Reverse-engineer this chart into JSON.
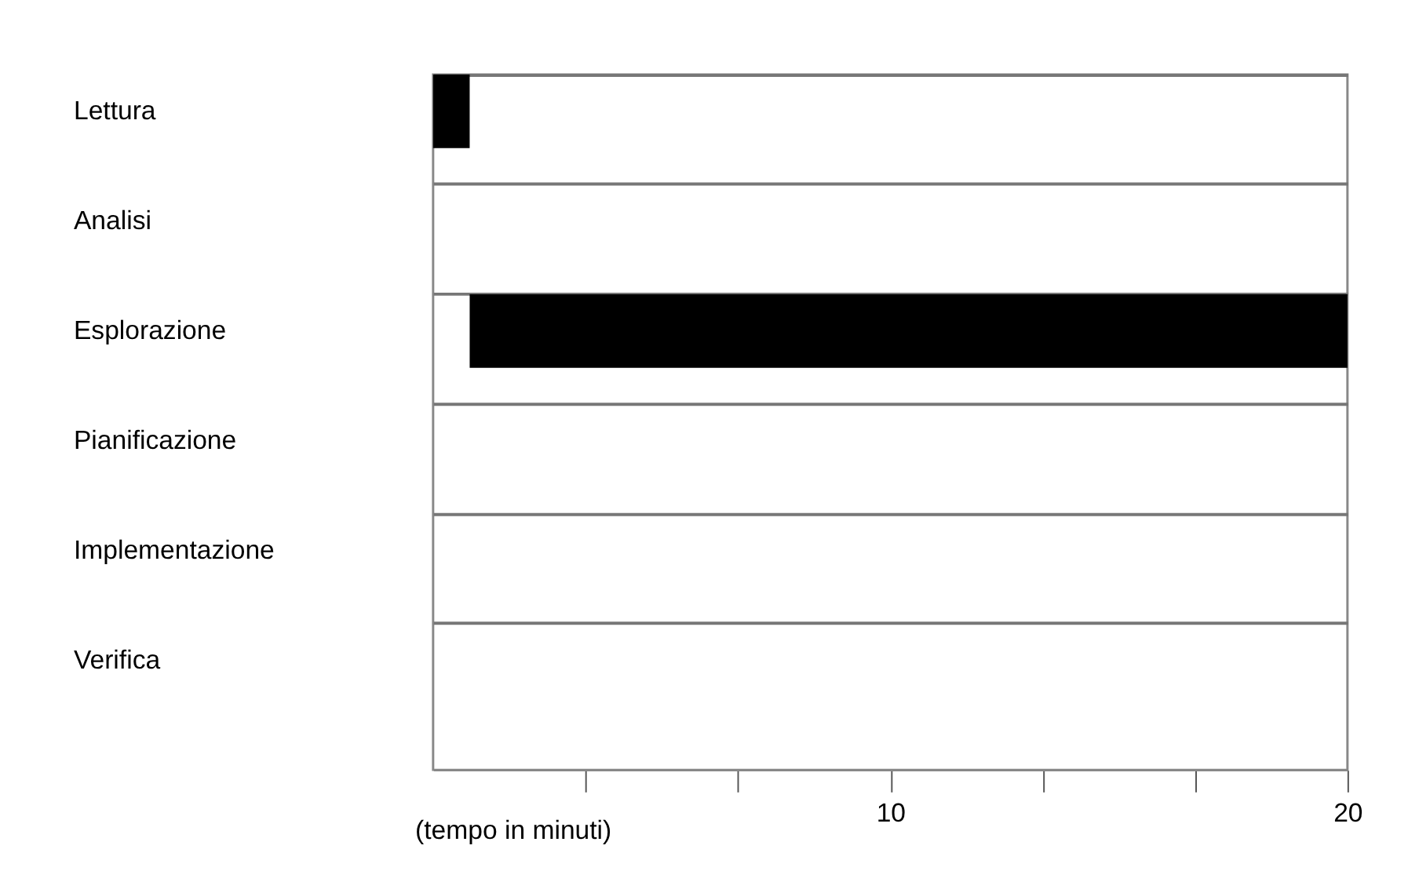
{
  "chart_data": {
    "type": "bar",
    "orientation": "horizontal",
    "categories": [
      "Lettura",
      "Analisi",
      "Esplorazione",
      "Pianificazione",
      "Implementazione",
      "Verifica"
    ],
    "values": [
      0.8,
      null,
      19.2,
      null,
      null,
      null
    ],
    "base": [
      0,
      null,
      0.8,
      null,
      null,
      null
    ],
    "color": "#000000",
    "xlabel": "(tempo in minuti)",
    "xlim": [
      0,
      20
    ],
    "xticks": [
      {
        "value": 3.33,
        "label": null
      },
      {
        "value": 6.67,
        "label": null
      },
      10,
      {
        "value": 13.33,
        "label": null
      },
      {
        "value": 16.67,
        "label": null
      },
      20
    ],
    "grid": "y"
  }
}
